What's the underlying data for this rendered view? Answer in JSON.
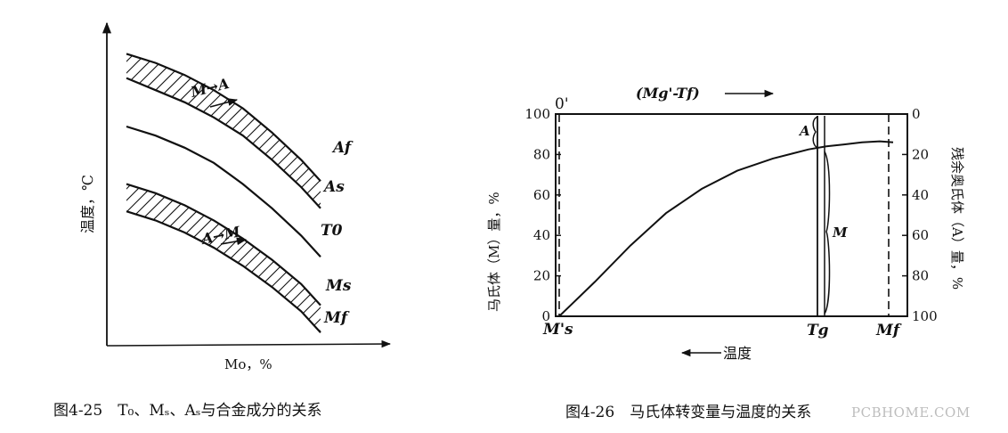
{
  "chart_data": [
    {
      "type": "line",
      "title": "",
      "xlabel": "Mo，%",
      "ylabel": "温度，℃",
      "x_axis_direction": "increasing to the right (arrow)",
      "y_axis_direction": "increasing upward (arrow)",
      "ticks": "none",
      "series": [
        {
          "name": "Af",
          "x": [
            0.0,
            0.15,
            0.3,
            0.45,
            0.6,
            0.75,
            0.9,
            1.0
          ],
          "y": [
            0.94,
            0.91,
            0.87,
            0.82,
            0.76,
            0.68,
            0.59,
            0.52
          ]
        },
        {
          "name": "As",
          "x": [
            0.0,
            0.15,
            0.3,
            0.45,
            0.6,
            0.75,
            0.9,
            1.0
          ],
          "y": [
            0.86,
            0.82,
            0.78,
            0.73,
            0.67,
            0.59,
            0.5,
            0.43
          ]
        },
        {
          "name": "T0",
          "x": [
            0.0,
            0.15,
            0.3,
            0.45,
            0.6,
            0.75,
            0.9,
            1.0
          ],
          "y": [
            0.7,
            0.67,
            0.63,
            0.58,
            0.51,
            0.43,
            0.34,
            0.27
          ]
        },
        {
          "name": "Ms",
          "x": [
            0.0,
            0.15,
            0.3,
            0.45,
            0.6,
            0.75,
            0.9,
            1.0
          ],
          "y": [
            0.51,
            0.48,
            0.44,
            0.39,
            0.33,
            0.26,
            0.18,
            0.11
          ]
        },
        {
          "name": "Mf",
          "x": [
            0.0,
            0.15,
            0.3,
            0.45,
            0.6,
            0.75,
            0.9,
            1.0
          ],
          "y": [
            0.42,
            0.39,
            0.35,
            0.3,
            0.24,
            0.17,
            0.09,
            0.02
          ]
        }
      ],
      "regions": [
        {
          "between": [
            "Af",
            "As"
          ],
          "fill": "hatched",
          "label": "M→A"
        },
        {
          "between": [
            "Ms",
            "Mf"
          ],
          "fill": "hatched",
          "label": "A→M"
        }
      ],
      "caption": "图4-25　T₀、Mₛ、Aₛ与合金成分的关系"
    },
    {
      "type": "line",
      "title": "",
      "xlabel": "温度",
      "xlabel_arrow": "←",
      "top_label": "(Mg'-Tf)",
      "top_label_arrow": "→",
      "ylabel": "马氏体（M）量，%",
      "ylabel_right": "残余奥氏体（A）量，%",
      "ylim": [
        0,
        100
      ],
      "yticks": [
        0,
        20,
        40,
        60,
        80,
        100
      ],
      "ylim_right": [
        100,
        0
      ],
      "yticks_right": [
        0,
        20,
        40,
        60,
        80,
        100
      ],
      "x_markers": [
        "M's",
        "Tg",
        "Mf"
      ],
      "top_marker": "0'",
      "series": [
        {
          "name": "",
          "x": [
            0,
            40,
            80,
            120,
            160,
            200,
            240,
            280,
            300,
            320,
            340,
            360,
            375
          ],
          "y": [
            0,
            17,
            35,
            51,
            63,
            72,
            78,
            82.5,
            84,
            85,
            86,
            86.5,
            86
          ]
        }
      ],
      "annotations": [
        "A",
        "M"
      ],
      "caption": "图4-26　马氏体转变量与温度的关系"
    }
  ],
  "watermark": "PCBHOME.COM"
}
